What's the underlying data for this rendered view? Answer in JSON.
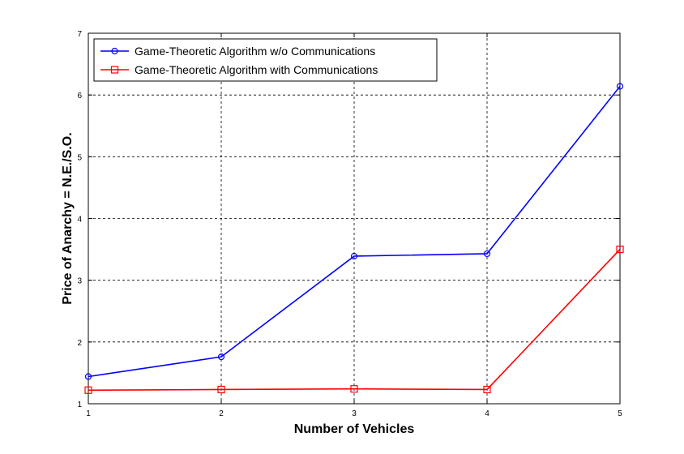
{
  "chart_data": {
    "type": "line",
    "title": "",
    "xlabel": "Number of Vehicles",
    "ylabel": "Price of Anarchy = N.E./S.O.",
    "x": [
      1,
      2,
      3,
      4,
      5
    ],
    "xticks": [
      "1",
      "2",
      "3",
      "4",
      "5"
    ],
    "yticks": [
      "1",
      "2",
      "3",
      "4",
      "5",
      "6",
      "7"
    ],
    "xlim": [
      1,
      5
    ],
    "ylim": [
      1,
      7
    ],
    "grid": true,
    "legend_position": "top-left",
    "series": [
      {
        "name": "Game-Theoretic Algorithm w/o Communications",
        "values": [
          1.44,
          1.76,
          3.39,
          3.43,
          6.14
        ],
        "color": "#0000ff",
        "marker": "circle"
      },
      {
        "name": "Game-Theoretic Algorithm with Communications",
        "values": [
          1.22,
          1.23,
          1.24,
          1.23,
          3.5
        ],
        "color": "#ff0000",
        "marker": "square"
      }
    ]
  }
}
